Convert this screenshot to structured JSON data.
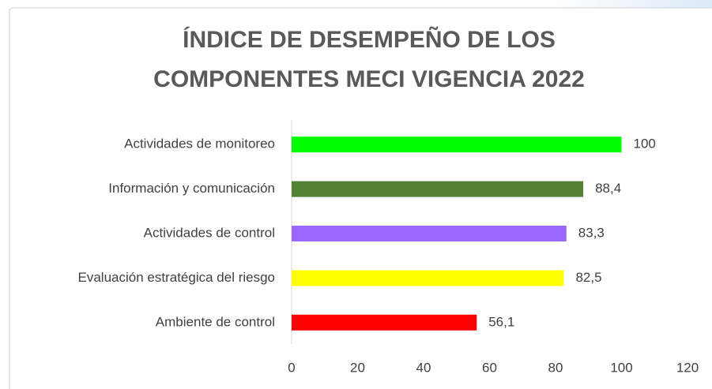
{
  "chart_data": {
    "type": "bar",
    "orientation": "horizontal",
    "title": [
      "ÍNDICE DE DESEMPEÑO DE LOS",
      "COMPONENTES MECI VIGENCIA 2022"
    ],
    "categories": [
      "Actividades de monitoreo",
      "Información y comunicación",
      "Actividades de control",
      "Evaluación estratégica del riesgo",
      "Ambiente de control"
    ],
    "values": [
      100,
      88.4,
      83.3,
      82.5,
      56.1
    ],
    "value_labels": [
      "100",
      "88,4",
      "83,3",
      "82,5",
      "56,1"
    ],
    "colors": [
      "#00ff00",
      "#548235",
      "#9966ff",
      "#ffff00",
      "#ff0000"
    ],
    "xlim": [
      0,
      120
    ],
    "xticks": [
      0,
      20,
      40,
      60,
      80,
      100,
      120
    ],
    "grid": false
  }
}
